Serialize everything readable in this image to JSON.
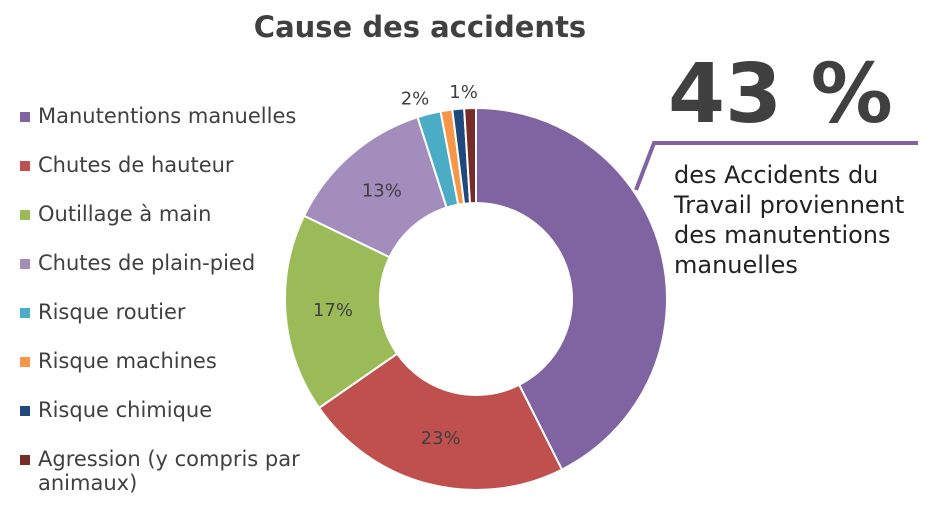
{
  "chart_data": {
    "type": "pie",
    "title": "Cause des accidents",
    "categories": [
      "Manutentions manuelles",
      "Chutes de hauteur",
      "Outillage à main",
      "Chutes de plain-pied",
      "Risque routier",
      "Risque machines",
      "Risque chimique",
      "Agression (y compris par animaux)"
    ],
    "values": [
      43,
      23,
      17,
      13,
      2,
      1,
      1,
      1
    ],
    "data_labels": [
      "",
      "23%",
      "17%",
      "13%",
      "2%",
      "",
      "",
      "1%"
    ],
    "colors": [
      "#8064A2",
      "#C0504D",
      "#9BBB59",
      "#A28DBC",
      "#4BACC6",
      "#F79646",
      "#1F497D",
      "#772C2A"
    ],
    "legend_position": "left",
    "donut": true
  },
  "callout": {
    "big_value": "43 %",
    "text": "des Accidents du Travail proviennent des manutentions manuelles",
    "line_color": "#8064A2"
  }
}
